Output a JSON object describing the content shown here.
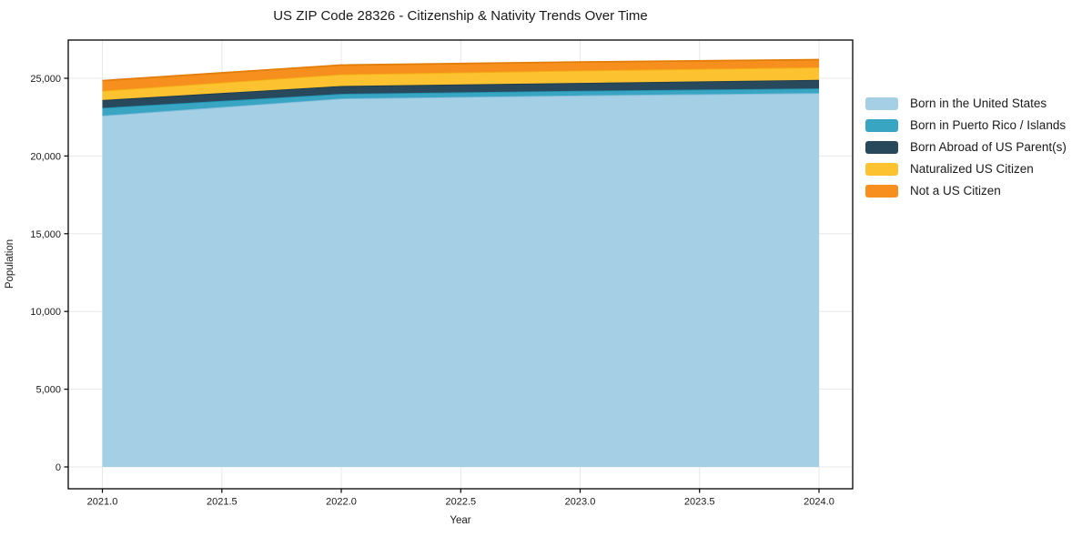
{
  "chart_data": {
    "type": "area",
    "stacked": true,
    "title": "US ZIP Code 28326 - Citizenship & Nativity Trends Over Time",
    "xlabel": "Year",
    "ylabel": "Population",
    "x": [
      2021,
      2022,
      2023,
      2024
    ],
    "series": [
      {
        "name": "Born in the United States",
        "color": "#a5cfe5",
        "edge_color": "#7fbcda",
        "values": [
          22600,
          23700,
          23900,
          24050
        ]
      },
      {
        "name": "Born in Puerto Rico / Islands",
        "color": "#38a5c3",
        "edge_color": "#2292b2",
        "values": [
          500,
          300,
          300,
          300
        ]
      },
      {
        "name": "Born Abroad of US Parent(s)",
        "color": "#28495c",
        "edge_color": "#1d3a4a",
        "values": [
          500,
          500,
          500,
          550
        ]
      },
      {
        "name": "Naturalized US Citizen",
        "color": "#fcc230",
        "edge_color": "#f3b013",
        "values": [
          600,
          750,
          800,
          800
        ]
      },
      {
        "name": "Not a US Citizen",
        "color": "#f68f1e",
        "edge_color": "#e27d08",
        "values": [
          650,
          600,
          550,
          500
        ]
      }
    ],
    "x_ticks": [
      2021.0,
      2021.5,
      2022.0,
      2022.5,
      2023.0,
      2023.5,
      2024.0
    ],
    "x_tick_labels": [
      "2021.0",
      "2021.5",
      "2022.0",
      "2022.5",
      "2023.0",
      "2023.5",
      "2024.0"
    ],
    "y_ticks": [
      0,
      5000,
      10000,
      15000,
      20000,
      25000
    ],
    "y_tick_labels": [
      "0",
      "5,000",
      "10,000",
      "15,000",
      "20,000",
      "25,000"
    ],
    "xlim": [
      2020.857,
      2024.141
    ],
    "ylim": [
      -1405,
      27459
    ],
    "grid": true,
    "grid_color": "#e8e8e8",
    "axis_color": "#000000",
    "legend_position": "right"
  }
}
